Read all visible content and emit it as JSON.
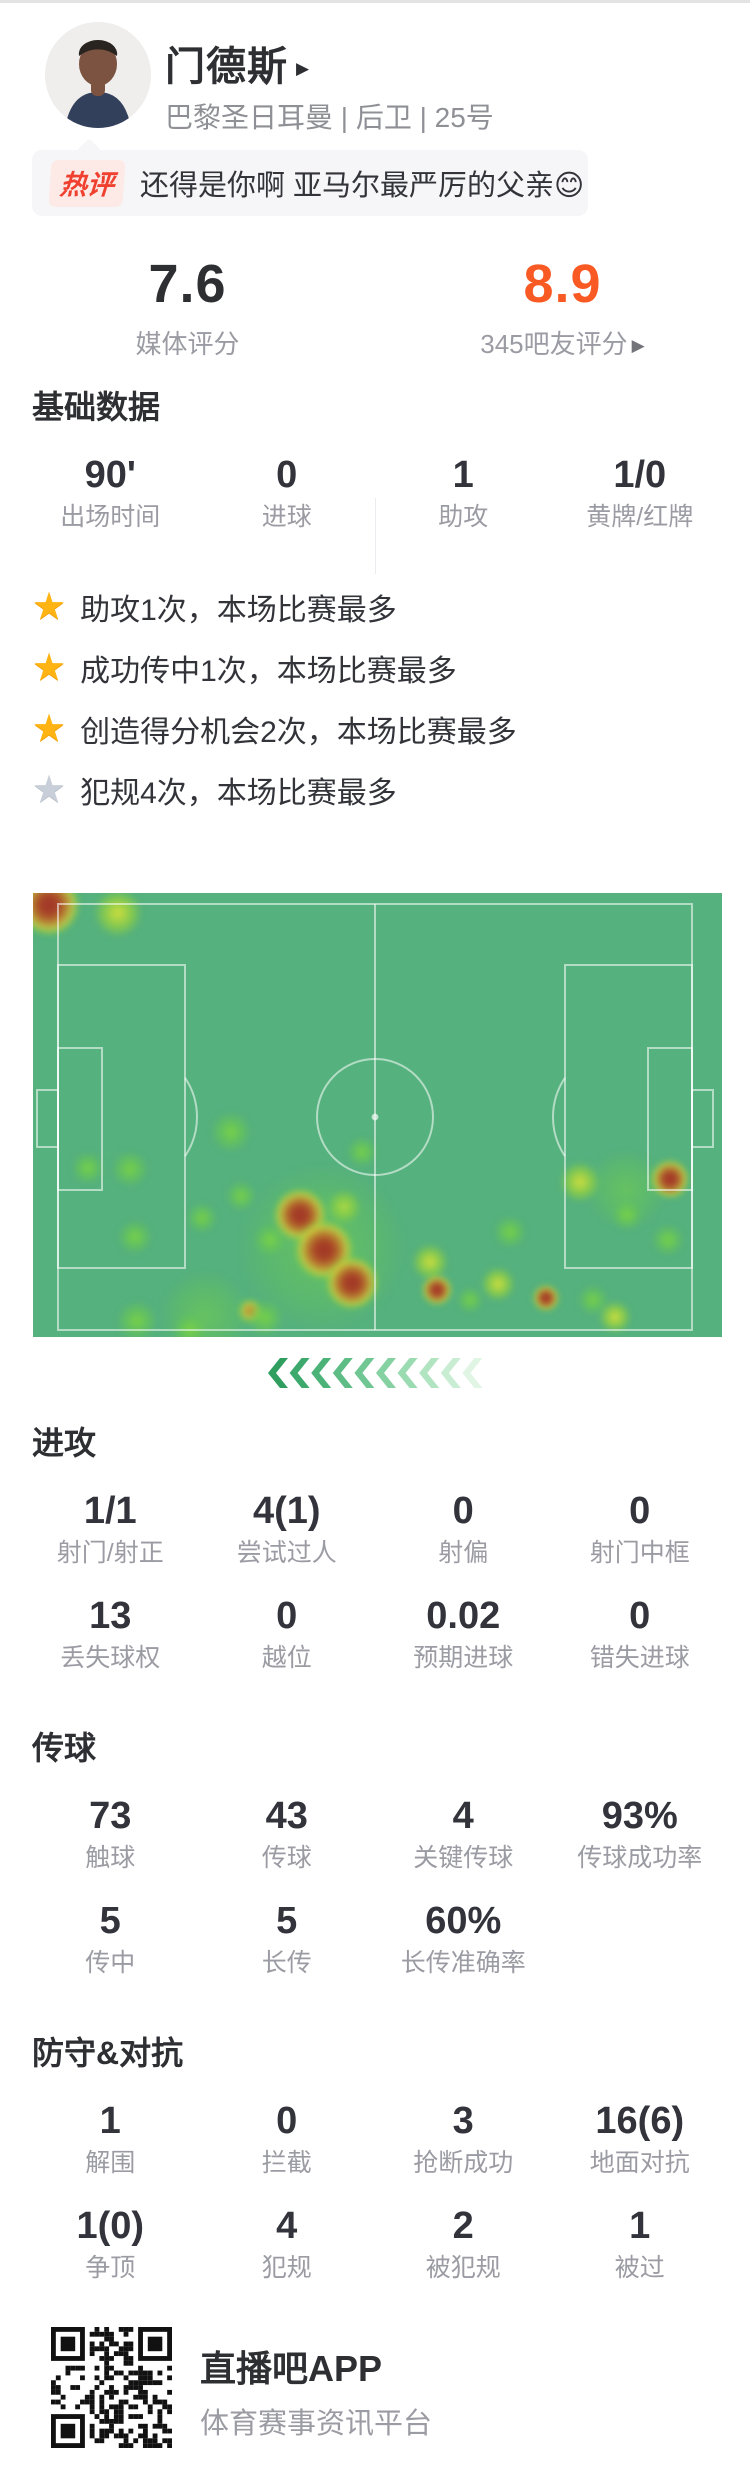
{
  "player": {
    "name": "门德斯",
    "name_arrow": "▶",
    "meta": "巴黎圣日耳曼 | 后卫 | 25号"
  },
  "hot_comment": {
    "badge": "热评",
    "text": "还得是你啊 亚马尔最严厉的父亲😊"
  },
  "ratings": {
    "media": {
      "value": "7.6",
      "label": "媒体评分"
    },
    "fans": {
      "value": "8.9",
      "label": "345吧友评分",
      "arrow": "▶"
    }
  },
  "sections": {
    "basic": {
      "title": "基础数据",
      "rows": [
        [
          {
            "value": "90'",
            "label": "出场时间"
          },
          {
            "value": "0",
            "label": "进球"
          },
          {
            "value": "1",
            "label": "助攻"
          },
          {
            "value": "1/0",
            "label": "黄牌/红牌"
          }
        ]
      ]
    },
    "attack": {
      "title": "进攻",
      "rows": [
        [
          {
            "value": "1/1",
            "label": "射门/射正"
          },
          {
            "value": "4(1)",
            "label": "尝试过人"
          },
          {
            "value": "0",
            "label": "射偏"
          },
          {
            "value": "0",
            "label": "射门中框"
          }
        ],
        [
          {
            "value": "13",
            "label": "丢失球权"
          },
          {
            "value": "0",
            "label": "越位"
          },
          {
            "value": "0.02",
            "label": "预期进球"
          },
          {
            "value": "0",
            "label": "错失进球"
          }
        ]
      ]
    },
    "passing": {
      "title": "传球",
      "rows": [
        [
          {
            "value": "73",
            "label": "触球"
          },
          {
            "value": "43",
            "label": "传球"
          },
          {
            "value": "4",
            "label": "关键传球"
          },
          {
            "value": "93%",
            "label": "传球成功率"
          }
        ],
        [
          {
            "value": "5",
            "label": "传中"
          },
          {
            "value": "5",
            "label": "长传"
          },
          {
            "value": "60%",
            "label": "长传准确率"
          }
        ]
      ]
    },
    "defense": {
      "title": "防守&对抗",
      "rows": [
        [
          {
            "value": "1",
            "label": "解围"
          },
          {
            "value": "0",
            "label": "拦截"
          },
          {
            "value": "3",
            "label": "抢断成功"
          },
          {
            "value": "16(6)",
            "label": "地面对抗"
          }
        ],
        [
          {
            "value": "1(0)",
            "label": "争顶"
          },
          {
            "value": "4",
            "label": "犯规"
          },
          {
            "value": "2",
            "label": "被犯规"
          },
          {
            "value": "1",
            "label": "被过"
          }
        ]
      ]
    }
  },
  "highlights": [
    {
      "star": "gold",
      "text": "助攻1次，本场比赛最多"
    },
    {
      "star": "gold",
      "text": "成功传中1次，本场比赛最多"
    },
    {
      "star": "gold",
      "text": "创造得分机会2次，本场比赛最多"
    },
    {
      "star": "gray",
      "text": "犯规4次，本场比赛最多"
    }
  ],
  "footer": {
    "app": "直播吧APP",
    "slogan": "体育赛事资讯平台"
  },
  "chart_data": {
    "type": "heatmap",
    "title": "player-position-heatmap-on-football-pitch",
    "pitch_color": "#55b17d",
    "line_color": "rgba(255,255,255,0.55)",
    "attack_direction_arrows": "left",
    "arrow_colors": [
      "#2f9e5f",
      "#3da96c",
      "#4cb378",
      "#5dbd85",
      "#70c793",
      "#85d1a2",
      "#9adbb1",
      "#b1e4c1",
      "#c9edd2",
      "#e0f5e3"
    ],
    "points": [
      {
        "x": 2.3,
        "y": 2.7,
        "r": 30,
        "level": "red"
      },
      {
        "x": 12.3,
        "y": 4.5,
        "r": 24,
        "level": "yellow"
      },
      {
        "x": 28.7,
        "y": 53.8,
        "r": 20,
        "level": "green"
      },
      {
        "x": 8.0,
        "y": 61.9,
        "r": 16,
        "level": "green"
      },
      {
        "x": 14.1,
        "y": 62.2,
        "r": 18,
        "level": "green"
      },
      {
        "x": 14.8,
        "y": 77.5,
        "r": 17,
        "level": "green"
      },
      {
        "x": 24.5,
        "y": 73.2,
        "r": 15,
        "level": "green"
      },
      {
        "x": 30.2,
        "y": 68.2,
        "r": 15,
        "level": "green"
      },
      {
        "x": 45.1,
        "y": 70.7,
        "r": 17,
        "level": "yellow"
      },
      {
        "x": 47.7,
        "y": 58.3,
        "r": 15,
        "level": "green"
      },
      {
        "x": 42.0,
        "y": 80.0,
        "r": 85,
        "level": "halo"
      },
      {
        "x": 38.8,
        "y": 72.5,
        "r": 26,
        "level": "red"
      },
      {
        "x": 42.2,
        "y": 80.4,
        "r": 29,
        "level": "red"
      },
      {
        "x": 46.3,
        "y": 87.8,
        "r": 26,
        "level": "red"
      },
      {
        "x": 34.4,
        "y": 78.2,
        "r": 16,
        "level": "green"
      },
      {
        "x": 31.5,
        "y": 94.1,
        "r": 13,
        "level": "orange"
      },
      {
        "x": 25.0,
        "y": 95.0,
        "r": 45,
        "level": "halo"
      },
      {
        "x": 15.1,
        "y": 96.4,
        "r": 20,
        "level": "green"
      },
      {
        "x": 22.8,
        "y": 98.4,
        "r": 17,
        "level": "green"
      },
      {
        "x": 33.7,
        "y": 95.7,
        "r": 18,
        "level": "green"
      },
      {
        "x": 57.6,
        "y": 83.1,
        "r": 18,
        "level": "yellow"
      },
      {
        "x": 58.6,
        "y": 89.4,
        "r": 15,
        "level": "red"
      },
      {
        "x": 67.5,
        "y": 88.1,
        "r": 17,
        "level": "yellow"
      },
      {
        "x": 74.5,
        "y": 91.2,
        "r": 13,
        "level": "red"
      },
      {
        "x": 69.2,
        "y": 76.4,
        "r": 16,
        "level": "green"
      },
      {
        "x": 63.4,
        "y": 91.7,
        "r": 13,
        "level": "green"
      },
      {
        "x": 86.0,
        "y": 67.0,
        "r": 40,
        "level": "halo"
      },
      {
        "x": 79.4,
        "y": 65.1,
        "r": 20,
        "level": "yellow"
      },
      {
        "x": 92.5,
        "y": 64.4,
        "r": 19,
        "level": "red"
      },
      {
        "x": 86.2,
        "y": 72.5,
        "r": 15,
        "level": "green"
      },
      {
        "x": 92.2,
        "y": 78.2,
        "r": 16,
        "level": "green"
      },
      {
        "x": 84.5,
        "y": 95.5,
        "r": 16,
        "level": "yellow"
      },
      {
        "x": 81.3,
        "y": 91.7,
        "r": 15,
        "level": "green"
      }
    ]
  }
}
